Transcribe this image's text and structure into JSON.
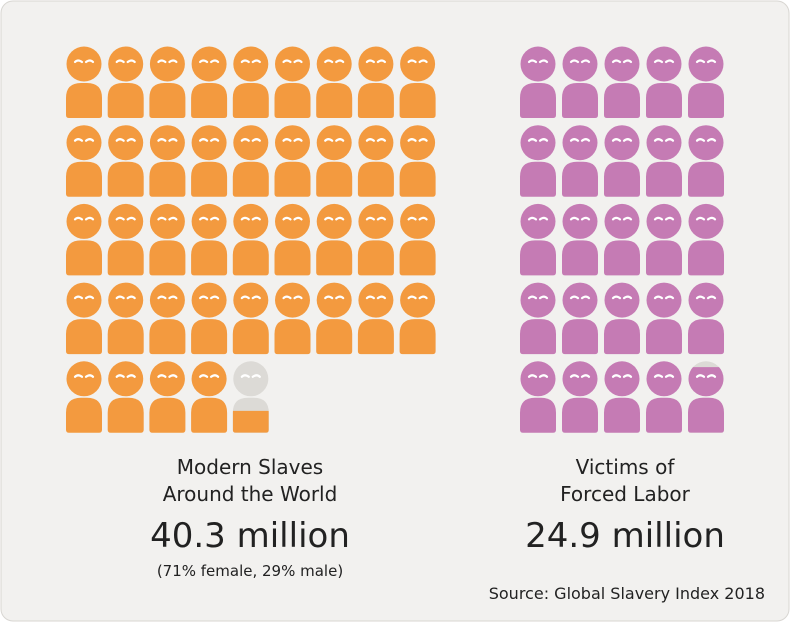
{
  "chart_data": [
    {
      "type": "pictogram",
      "title": [
        "Modern Slaves",
        "Around the World"
      ],
      "values": [
        40.3
      ],
      "value_labels": [
        "40.3 million"
      ],
      "subtitle": "(71% female, 29% male)",
      "color": "#f39a3f"
    },
    {
      "type": "pictogram",
      "title": [
        "Victims of",
        "Forced Labor"
      ],
      "values": [
        24.9
      ],
      "value_labels": [
        "24.9 million"
      ],
      "color": "#c57bb4"
    }
  ],
  "source": "Source: Global Slavery Index 2018"
}
